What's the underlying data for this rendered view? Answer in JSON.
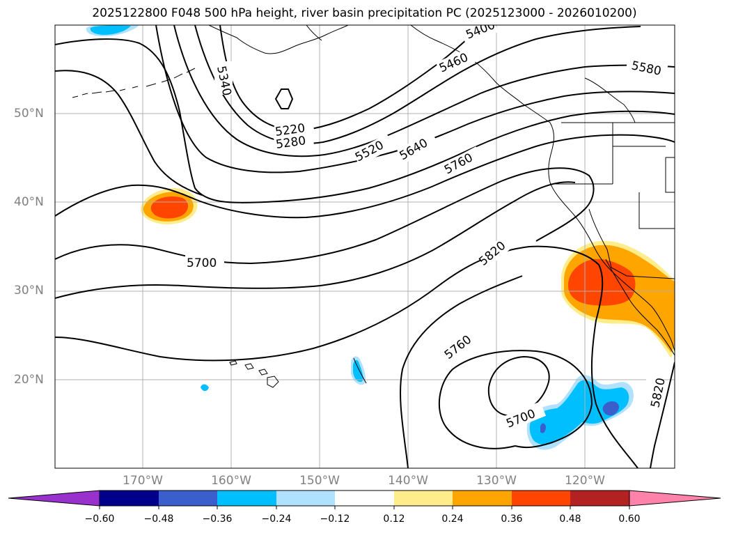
{
  "title": "2025122800 F048 500 hPa height, river basin precipitation PC (2025123000 - 2026010200)",
  "lat_labels": [
    "50°N",
    "40°N",
    "30°N",
    "20°N"
  ],
  "lon_labels": [
    "170°W",
    "160°W",
    "150°W",
    "140°W",
    "130°W",
    "120°W"
  ],
  "contour_labels": [
    "5340",
    "5220",
    "5280",
    "5400",
    "5460",
    "5580",
    "5520",
    "5640",
    "5760",
    "5700",
    "5820",
    "5760",
    "5700",
    "5820"
  ],
  "colorbar": {
    "ticks": [
      "−0.60",
      "−0.48",
      "−0.36",
      "−0.24",
      "−0.12",
      "0.12",
      "0.24",
      "0.36",
      "0.48",
      "0.60"
    ],
    "colors": [
      "#9932cc",
      "#00008b",
      "#3a5fcd",
      "#00bfff",
      "#b0e2ff",
      "#ffffff",
      "#ffec8b",
      "#ffa500",
      "#ff4500",
      "#b22222",
      "#ff82ab"
    ]
  },
  "colors": {
    "orange": "#ffa500",
    "red_orange": "#ff4500",
    "light_yellow": "#ffec8b",
    "deep_sky_blue": "#00bfff",
    "light_sky_blue": "#b0e2ff",
    "royal_blue": "#3a5fcd"
  }
}
